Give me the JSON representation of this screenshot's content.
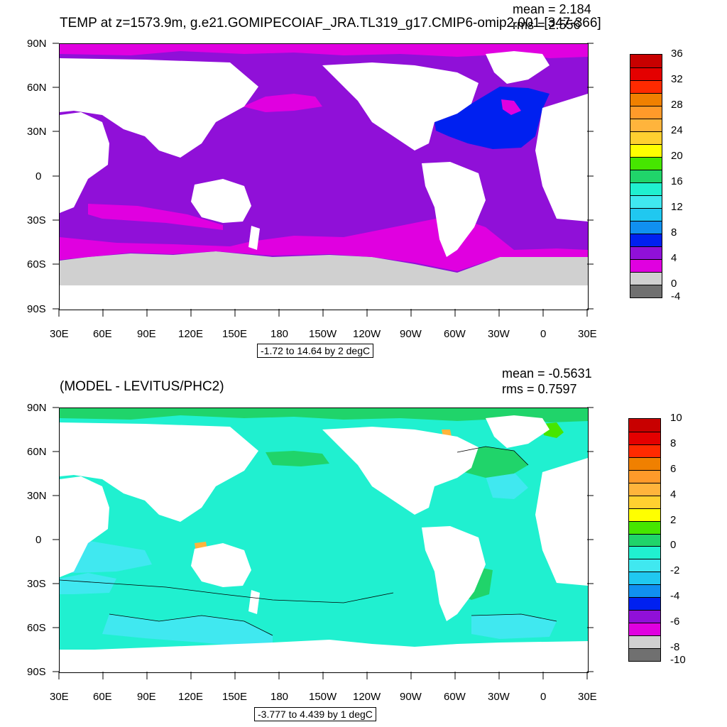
{
  "panel_top": {
    "title": "TEMP at z=1573.9m, g.e21.GOMIPECOIAF_JRA.TL319_g17.CMIP6-omip2.001 [347-366]",
    "mean_text": "mean = 2.184",
    "rms_text": "rms = 2.556",
    "range_label": "-1.72 to 14.64 by 2 degC",
    "lat_labels": [
      "90N",
      "60N",
      "30N",
      "0",
      "30S",
      "60S",
      "90S"
    ],
    "lon_labels": [
      "30E",
      "60E",
      "90E",
      "120E",
      "150E",
      "180",
      "150W",
      "120W",
      "90W",
      "60W",
      "30W",
      "0",
      "30E"
    ],
    "colorbar_labels": [
      "36",
      "32",
      "28",
      "24",
      "20",
      "16",
      "12",
      "8",
      "4",
      "0",
      "-4"
    ],
    "colorbar_colors": [
      "#c80000",
      "#e40000",
      "#ff2a00",
      "#f08000",
      "#ff9a2a",
      "#ffb43c",
      "#ffd030",
      "#ffff00",
      "#46e600",
      "#20d46a",
      "#20f0d0",
      "#40e8f0",
      "#20c8f0",
      "#1090f0",
      "#0020f0",
      "#9010d8",
      "#e000e0",
      "#d0d0d0",
      "#707070"
    ]
  },
  "panel_bottom": {
    "title": "(MODEL - LEVITUS/PHC2)",
    "mean_text": "mean = -0.5631",
    "rms_text": "rms = 0.7597",
    "range_label": "-3.777 to 4.439 by 1 degC",
    "lat_labels": [
      "90N",
      "60N",
      "30N",
      "0",
      "30S",
      "60S",
      "90S"
    ],
    "lon_labels": [
      "30E",
      "60E",
      "90E",
      "120E",
      "150E",
      "180",
      "150W",
      "120W",
      "90W",
      "60W",
      "30W",
      "0",
      "30E"
    ],
    "colorbar_labels": [
      "10",
      "8",
      "6",
      "4",
      "2",
      "0",
      "-2",
      "-4",
      "-6",
      "-8",
      "-10"
    ],
    "colorbar_colors": [
      "#c80000",
      "#e40000",
      "#ff2a00",
      "#f08000",
      "#ff9a2a",
      "#ffb43c",
      "#ffd030",
      "#ffff00",
      "#46e600",
      "#20d46a",
      "#20f0d0",
      "#40e8f0",
      "#20c8f0",
      "#1090f0",
      "#0020f0",
      "#9010d8",
      "#e000e0",
      "#d0d0d0",
      "#707070"
    ]
  },
  "colors": {
    "land": "#ffffff",
    "ice": "#d0d0d0",
    "top_deep": "#9010d8",
    "top_magenta": "#e000e0",
    "top_blue": "#0020f0",
    "bot_main": "#20f0d0",
    "bot_cyan": "#40e8f0",
    "bot_green": "#20d46a",
    "bot_lime": "#46e600",
    "bot_orange": "#ffb43c"
  }
}
